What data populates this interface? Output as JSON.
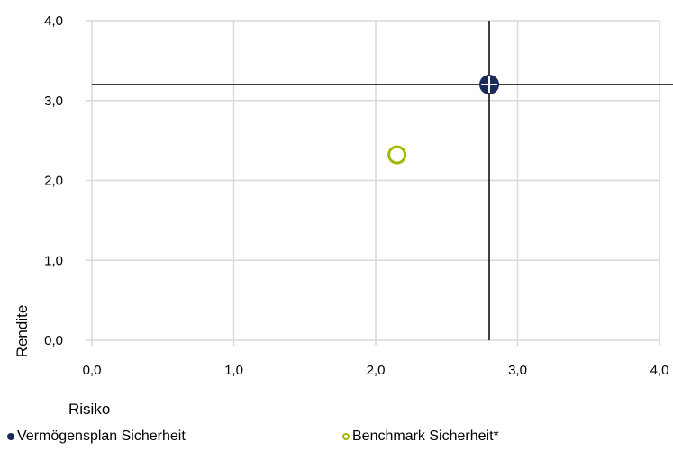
{
  "chart_data": {
    "type": "scatter",
    "title": "",
    "xlabel": "Risiko",
    "ylabel": "Rendite",
    "xlim": [
      0,
      4
    ],
    "ylim": [
      0,
      4
    ],
    "x_ticks": [
      "0,0",
      "1,0",
      "2,0",
      "3,0",
      "4,0"
    ],
    "y_ticks": [
      "0,0",
      "1,0",
      "2,0",
      "3,0",
      "4,0"
    ],
    "grid": true,
    "legend_position": "bottom",
    "crosshair": {
      "x": 2.8,
      "y": 3.2
    },
    "series": [
      {
        "name": "Vermögensplan Sicherheit",
        "marker": "filled-circle-with-cross",
        "color": "#1b2a5c",
        "points": [
          {
            "x": 2.8,
            "y": 3.2
          }
        ]
      },
      {
        "name": "Benchmark Sicherheit*",
        "marker": "hollow-circle",
        "color": "#a5b800",
        "points": [
          {
            "x": 2.15,
            "y": 2.32
          }
        ]
      }
    ]
  }
}
